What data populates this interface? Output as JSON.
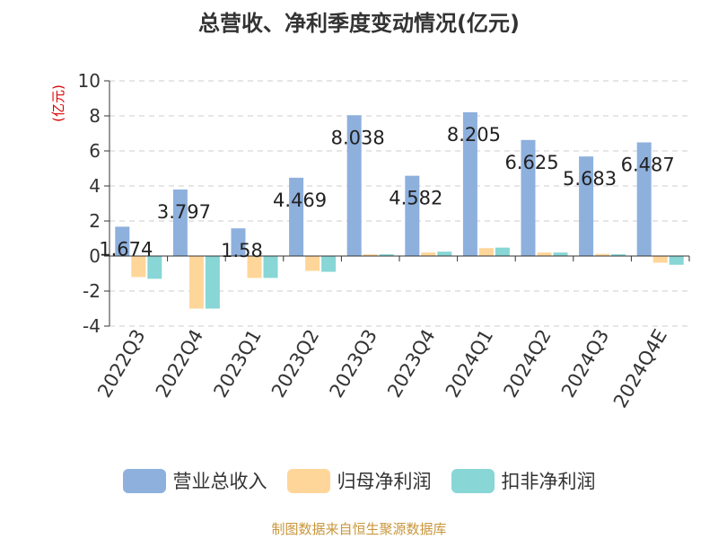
{
  "chart_data": {
    "type": "bar",
    "title": "总营收、净利季度变动情况(亿元)",
    "ylabel": "(亿元)",
    "ylim": [
      -4,
      10
    ],
    "yticks": [
      -4,
      -2,
      0,
      2,
      4,
      6,
      8,
      10
    ],
    "grid": true,
    "legend_position": "bottom",
    "categories": [
      "2022Q3",
      "2022Q4",
      "2023Q1",
      "2023Q2",
      "2023Q3",
      "2023Q4",
      "2024Q1",
      "2024Q2",
      "2024Q3",
      "2024Q4E"
    ],
    "series": [
      {
        "name": "营业总收入",
        "color": "#8eb0dd",
        "values": [
          1.674,
          3.797,
          1.58,
          4.469,
          8.038,
          4.582,
          8.205,
          6.625,
          5.683,
          6.487
        ],
        "labels": [
          "1.674",
          "3.797",
          "1.58",
          "4.469",
          "8.038",
          "4.582",
          "8.205",
          "6.625",
          "5.683",
          "6.487"
        ]
      },
      {
        "name": "归母净利润",
        "color": "#ffd699",
        "values": [
          -1.2,
          -3.0,
          -1.25,
          -0.85,
          0.1,
          0.2,
          0.45,
          0.2,
          0.12,
          -0.38
        ]
      },
      {
        "name": "扣非净利润",
        "color": "#88d6d6",
        "values": [
          -1.3,
          -3.0,
          -1.25,
          -0.9,
          0.1,
          0.25,
          0.48,
          0.2,
          0.1,
          -0.5
        ]
      }
    ]
  },
  "footer": {
    "source": "制图数据来自恒生聚源数据库",
    "source_color": "#c8963c"
  }
}
